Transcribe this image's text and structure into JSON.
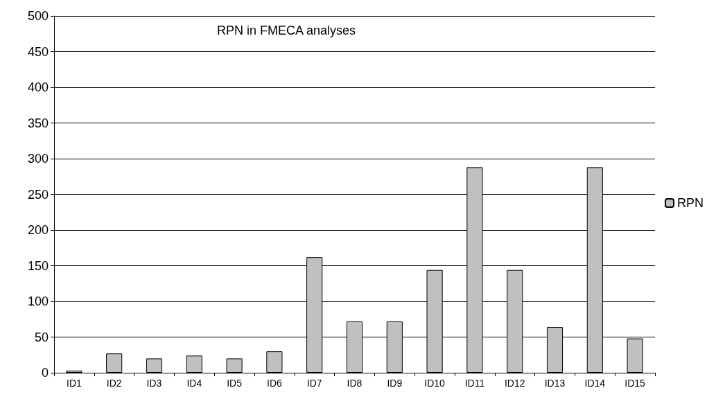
{
  "chart_data": {
    "type": "bar",
    "title": "RPN in FMECA analyses",
    "categories": [
      "ID1",
      "ID2",
      "ID3",
      "ID4",
      "ID5",
      "ID6",
      "ID7",
      "ID8",
      "ID9",
      "ID10",
      "ID11",
      "ID12",
      "ID13",
      "ID14",
      "ID15"
    ],
    "series": [
      {
        "name": "RPN",
        "color": "#c0c0c0",
        "values": [
          3,
          27,
          20,
          24,
          20,
          30,
          162,
          72,
          72,
          144,
          288,
          144,
          64,
          288,
          48
        ]
      }
    ],
    "ylim": [
      0,
      500
    ],
    "yticks": [
      0,
      50,
      100,
      150,
      200,
      250,
      300,
      350,
      400,
      450,
      500
    ],
    "grid": "y",
    "legend": "right"
  }
}
